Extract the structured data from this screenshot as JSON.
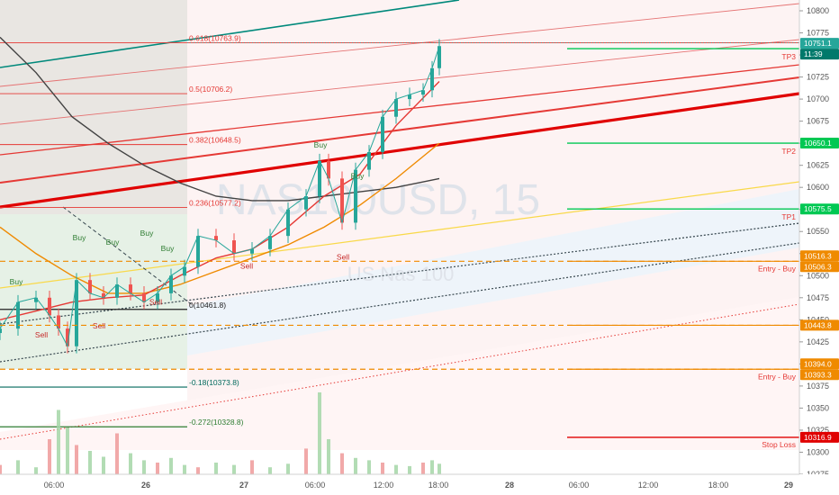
{
  "chart_data": {
    "type": "candlestick",
    "watermark": {
      "symbol": "NAS100USD, 15",
      "name": "US Nas 100"
    },
    "y_range": [
      10270,
      10815
    ],
    "x_ticks": [
      "06:00",
      "26",
      "27",
      "06:00",
      "12:00",
      "18:00",
      "28",
      "06:00",
      "12:00",
      "18:00",
      "29"
    ],
    "y_ticks": [
      10800,
      10775,
      10750,
      10725,
      10700,
      10675,
      10650,
      10625,
      10600,
      10575,
      10550,
      10525,
      10500,
      10475,
      10450,
      10425,
      10400,
      10375,
      10350,
      10325,
      10300,
      10275
    ],
    "last_price": {
      "value": "10751.1",
      "countdown": "11:39",
      "color": "#26a69a"
    },
    "fib_levels": [
      {
        "ratio": "0.618(10763.9)",
        "value": 10763.9,
        "color": "#e53935"
      },
      {
        "ratio": "0.5(10706.2)",
        "value": 10706.2,
        "color": "#e53935"
      },
      {
        "ratio": "0.382(10648.5)",
        "value": 10648.5,
        "color": "#e53935"
      },
      {
        "ratio": "0.236(10577.2)",
        "value": 10577.2,
        "color": "#e53935"
      },
      {
        "ratio": "0(10461.8)",
        "value": 10461.8,
        "color": "#212121"
      },
      {
        "ratio": "-0.18(10373.8)",
        "value": 10373.8,
        "color": "#00695c"
      },
      {
        "ratio": "-0.272(10328.8)",
        "value": 10328.8,
        "color": "#2e7d32"
      }
    ],
    "targets": [
      {
        "label": "TP3",
        "value": 10757.1,
        "badge": "10757.1",
        "color": "#00c853"
      },
      {
        "label": "TP2",
        "value": 10650.1,
        "badge": "10650.1",
        "color": "#00c853"
      },
      {
        "label": "TP1",
        "value": 10575.5,
        "badge": "10575.5",
        "color": "#00c853"
      }
    ],
    "entries": [
      {
        "label": "Entry - Buy",
        "value": 10516.3,
        "badges": [
          "10516.3",
          "10506.3"
        ],
        "color": "#ef8a00"
      },
      {
        "label": "",
        "value": 10443.8,
        "badges": [
          "10443.8"
        ],
        "color": "#ef8a00"
      },
      {
        "label": "Entry - Buy",
        "value": 10394.0,
        "badges": [
          "10394.0",
          "10393.3"
        ],
        "color": "#ef8a00"
      }
    ],
    "stop_loss": {
      "label": "Stop Loss",
      "value": 10316.9,
      "badge": "10316.9",
      "color": "#e00000"
    },
    "signals": [
      {
        "text": "Buy",
        "x": 18,
        "y": 10490
      },
      {
        "text": "Buy",
        "x": 88,
        "y": 10540
      },
      {
        "text": "Buy",
        "x": 125,
        "y": 10535
      },
      {
        "text": "Buy",
        "x": 163,
        "y": 10545
      },
      {
        "text": "Buy",
        "x": 186,
        "y": 10528
      },
      {
        "text": "Buy",
        "x": 356,
        "y": 10645
      },
      {
        "text": "Buy",
        "x": 397,
        "y": 10610
      },
      {
        "text": "Sell",
        "x": 46,
        "y": 10430
      },
      {
        "text": "Sell",
        "x": 110,
        "y": 10440
      },
      {
        "text": "Sell",
        "x": 173,
        "y": 10467
      },
      {
        "text": "Sell",
        "x": 274,
        "y": 10508
      },
      {
        "text": "Sell",
        "x": 381,
        "y": 10518
      }
    ],
    "price_series": {
      "x": [
        0,
        20,
        40,
        55,
        65,
        75,
        85,
        100,
        115,
        130,
        145,
        160,
        175,
        190,
        205,
        220,
        240,
        260,
        280,
        300,
        320,
        340,
        355,
        365,
        380,
        395,
        410,
        425,
        440,
        455,
        470,
        480,
        488
      ],
      "close": [
        10440,
        10470,
        10475,
        10455,
        10440,
        10420,
        10495,
        10480,
        10475,
        10490,
        10480,
        10470,
        10480,
        10500,
        10510,
        10545,
        10540,
        10525,
        10530,
        10545,
        10575,
        10590,
        10630,
        10610,
        10560,
        10620,
        10640,
        10680,
        10700,
        10705,
        10710,
        10735,
        10760
      ]
    },
    "ma_series": [
      {
        "name": "",
        "color": "#424242",
        "x": [
          0,
          40,
          80,
          120,
          160,
          200,
          240,
          280,
          320,
          360,
          400,
          440,
          488
        ],
        "y": [
          10770,
          10730,
          10680,
          10650,
          10625,
          10605,
          10590,
          10585,
          10585,
          10590,
          10595,
          10600,
          10610
        ]
      },
      {
        "name": "",
        "color": "#ef8a00",
        "x": [
          0,
          40,
          80,
          120,
          160,
          200,
          240,
          280,
          320,
          360,
          400,
          440,
          488
        ],
        "y": [
          10555,
          10525,
          10500,
          10480,
          10480,
          10490,
          10505,
          10520,
          10535,
          10555,
          10580,
          10610,
          10650
        ]
      },
      {
        "name": "",
        "color": "#e53935",
        "x": [
          0,
          40,
          80,
          120,
          160,
          200,
          240,
          280,
          320,
          360,
          400,
          440,
          488
        ],
        "y": [
          10450,
          10460,
          10470,
          10475,
          10478,
          10500,
          10520,
          10530,
          10555,
          10590,
          10615,
          10670,
          10720
        ]
      }
    ],
    "volume": [
      8,
      12,
      6,
      30,
      55,
      40,
      25,
      20,
      15,
      35,
      18,
      12,
      10,
      14,
      8,
      6,
      10,
      8,
      12,
      6,
      9,
      22,
      70,
      30,
      18,
      14,
      12,
      10,
      8,
      7,
      10,
      12,
      9
    ]
  }
}
